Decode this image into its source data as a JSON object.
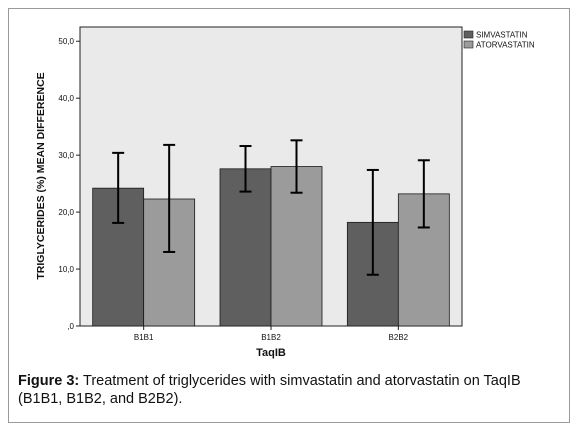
{
  "figure": {
    "caption_label": "Figure 3:",
    "caption_text": " Treatment of triglycerides with simvastatin and atorvastatin on TaqIB (B1B1, B1B2, and B2B2)."
  },
  "chart_data": {
    "type": "bar",
    "title": "",
    "xlabel": "TaqIB",
    "ylabel": "TRIGLYCERIDES (%) MEAN DIFFERENCE",
    "categories": [
      "B1B1",
      "B1B2",
      "B2B2"
    ],
    "ylim": [
      0,
      52.5
    ],
    "yticks": [
      0,
      10,
      20,
      30,
      40,
      50
    ],
    "ytick_labels": [
      ",0",
      "10,0",
      "20,0",
      "30,0",
      "40,0",
      "50,0"
    ],
    "grid": false,
    "legend_position": "top-right",
    "error_bars": true,
    "series": [
      {
        "name": "SIMVASTATIN",
        "color": "#5f5f5f",
        "values": [
          24.2,
          27.6,
          18.2
        ],
        "err_low": [
          18.1,
          23.6,
          9.0
        ],
        "err_high": [
          30.4,
          31.6,
          27.4
        ]
      },
      {
        "name": "ATORVASTATIN",
        "color": "#9b9b9b",
        "values": [
          22.3,
          28.0,
          23.2
        ],
        "err_low": [
          13.0,
          23.4,
          17.3
        ],
        "err_high": [
          31.8,
          32.6,
          29.1
        ]
      }
    ]
  }
}
